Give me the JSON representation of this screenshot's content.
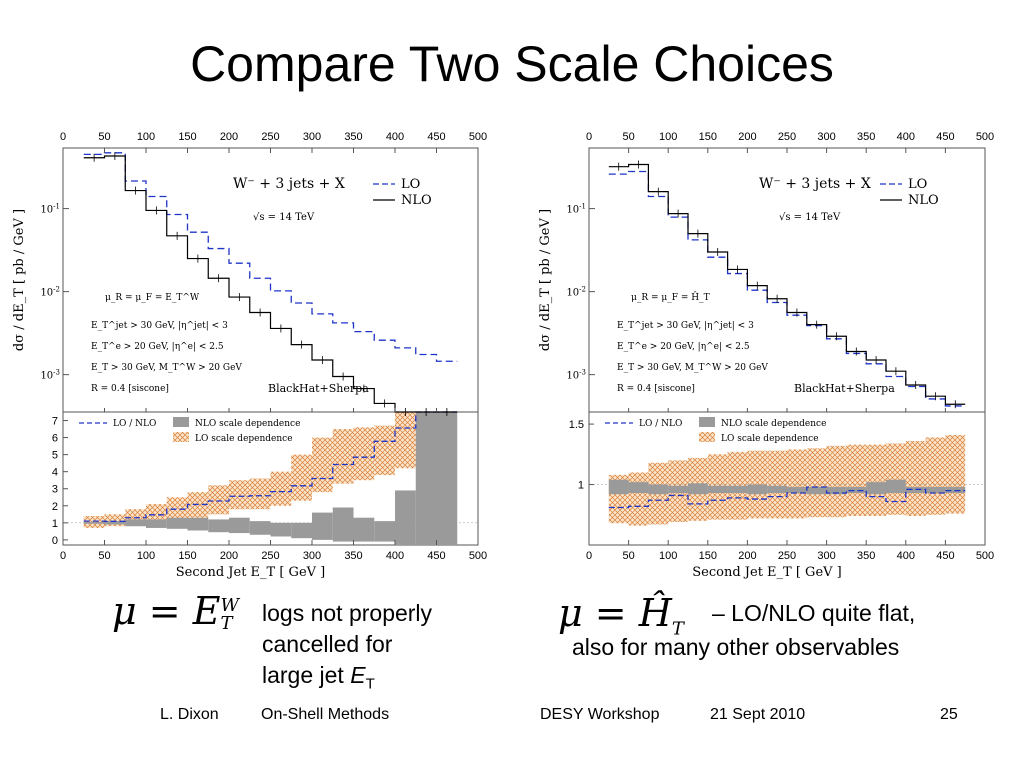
{
  "slide": {
    "title": "Compare Two Scale Choices",
    "caption_left": [
      "logs not properly",
      "cancelled for",
      "large jet "
    ],
    "caption_left_italic": "E",
    "caption_left_sub": "T",
    "caption_right_line1": "– LO/NLO quite flat,",
    "caption_right_line2": "also for many other observables",
    "formula_left": {
      "mu": "μ = ",
      "E": "E",
      "sup": "W",
      "sub": "T"
    },
    "formula_right": {
      "mu": "μ = ",
      "H": "Ĥ",
      "sub": "T"
    }
  },
  "footer": {
    "author": "L. Dixon",
    "talk": "On-Shell Methods",
    "event": "DESY Workshop",
    "date": "21 Sept 2010",
    "page": "25"
  },
  "colors": {
    "lo": "#1e34c8",
    "nlo": "#000000",
    "nlo_band": "#9a9a9a",
    "lo_band": "#e08a3c"
  },
  "chart_data": [
    {
      "type": "line",
      "step": true,
      "log_y": true,
      "title": "W⁻ + 3 jets + X",
      "energy": "√s = 14 TeV",
      "xlabel": "Second Jet E_T [ GeV ]",
      "ylabel": "dσ / dE_T [ pb / GeV ]",
      "xlim": [
        0,
        500
      ],
      "x_ticks": [
        "0",
        "50",
        "100",
        "150",
        "200",
        "250",
        "300",
        "350",
        "400",
        "450",
        "500"
      ],
      "y_ticks": [
        "10^-1",
        "10^-2",
        "10^-3"
      ],
      "legend": [
        "LO",
        "NLO"
      ],
      "legend_position": "top-right",
      "scale_label": "μ_R = μ_F = E_T^W",
      "cuts": [
        "E_T^jet > 30 GeV, |η^jet| < 3",
        "E_T^e > 20 GeV, |η^e| < 2.5",
        "E_T > 30 GeV, M_T^W > 20 GeV",
        "R = 0.4 [siscone]"
      ],
      "watermark": "BlackHat+Sherpa",
      "bin_edges": [
        25,
        50,
        75,
        100,
        125,
        150,
        175,
        200,
        225,
        250,
        275,
        300,
        325,
        350,
        375,
        400,
        425,
        450,
        475
      ],
      "series": [
        {
          "name": "LO",
          "values": [
            0.45,
            0.47,
            0.215,
            0.14,
            0.085,
            0.052,
            0.033,
            0.022,
            0.0145,
            0.0102,
            0.0073,
            0.0054,
            0.0042,
            0.0033,
            0.0026,
            0.0021,
            0.00175,
            0.00145
          ]
        },
        {
          "name": "NLO",
          "values": [
            0.41,
            0.43,
            0.165,
            0.095,
            0.047,
            0.025,
            0.0145,
            0.0086,
            0.0056,
            0.0036,
            0.0023,
            0.0015,
            0.00095,
            0.00068,
            0.00045,
            0.00032,
            0.00022,
            0.00015
          ]
        }
      ],
      "ratio_panel": {
        "ylim": [
          -0.3,
          7.5
        ],
        "y_ticks": [
          0,
          1,
          2,
          3,
          4,
          5,
          6,
          7
        ],
        "legend": [
          "LO / NLO",
          "NLO scale dependence",
          "LO scale dependence"
        ],
        "lo_over_nlo": [
          1.1,
          1.09,
          1.3,
          1.47,
          1.8,
          2.08,
          2.28,
          2.56,
          2.59,
          2.83,
          3.17,
          3.6,
          4.42,
          4.85,
          5.78,
          6.56,
          7.95,
          9.67
        ],
        "nlo_band_low": [
          0.95,
          0.9,
          0.8,
          0.7,
          0.65,
          0.55,
          0.45,
          0.4,
          0.3,
          0.2,
          0.1,
          0.0,
          -0.1,
          -0.1,
          -0.1,
          -0.3,
          -0.3,
          -0.3
        ],
        "nlo_band_high": [
          1.05,
          1.1,
          1.2,
          1.2,
          1.3,
          1.3,
          1.2,
          1.3,
          1.1,
          1.0,
          1.0,
          1.6,
          1.9,
          1.3,
          1.1,
          2.9,
          7.5,
          7.5
        ],
        "lo_band_low": [
          0.7,
          0.8,
          0.9,
          1.0,
          1.2,
          1.3,
          1.5,
          1.8,
          1.8,
          2.0,
          2.3,
          2.8,
          3.3,
          3.5,
          3.8,
          4.2,
          7.5,
          7.5
        ],
        "lo_band_high": [
          1.4,
          1.5,
          1.8,
          2.1,
          2.5,
          2.8,
          3.2,
          3.5,
          3.6,
          4.0,
          5.0,
          6.0,
          6.5,
          6.6,
          6.7,
          7.5,
          7.5,
          7.5
        ]
      }
    },
    {
      "type": "line",
      "step": true,
      "log_y": true,
      "title": "W⁻ + 3 jets + X",
      "energy": "√s = 14 TeV",
      "xlabel": "Second Jet E_T [ GeV ]",
      "ylabel": "dσ / dE_T [ pb / GeV ]",
      "xlim": [
        0,
        500
      ],
      "x_ticks": [
        "0",
        "50",
        "100",
        "150",
        "200",
        "250",
        "300",
        "350",
        "400",
        "450",
        "500"
      ],
      "y_ticks": [
        "10^-1",
        "10^-2",
        "10^-3"
      ],
      "legend": [
        "LO",
        "NLO"
      ],
      "legend_position": "top-right",
      "scale_label": "μ_R = μ_F = Ĥ_T",
      "cuts": [
        "E_T^jet > 30 GeV, |η^jet| < 3",
        "E_T^e > 20 GeV, |η^e| < 2.5",
        "E_T > 30 GeV, M_T^W > 20 GeV",
        "R = 0.4 [siscone]"
      ],
      "watermark": "BlackHat+Sherpa",
      "bin_edges": [
        25,
        50,
        75,
        100,
        125,
        150,
        175,
        200,
        225,
        250,
        275,
        300,
        325,
        350,
        375,
        400,
        425,
        450,
        475
      ],
      "series": [
        {
          "name": "LO",
          "values": [
            0.26,
            0.28,
            0.14,
            0.079,
            0.042,
            0.026,
            0.0165,
            0.0104,
            0.0074,
            0.0052,
            0.0039,
            0.0027,
            0.0018,
            0.00135,
            0.00095,
            0.00072,
            0.00051,
            0.00042
          ]
        },
        {
          "name": "NLO",
          "values": [
            0.32,
            0.34,
            0.16,
            0.087,
            0.05,
            0.03,
            0.0185,
            0.0118,
            0.0082,
            0.0056,
            0.004,
            0.0029,
            0.0019,
            0.0015,
            0.0011,
            0.00075,
            0.00055,
            0.00044
          ]
        }
      ],
      "ratio_panel": {
        "ylim": [
          0.5,
          1.6
        ],
        "y_ticks": [
          "1",
          "1.5"
        ],
        "legend": [
          "LO / NLO",
          "NLO scale dependence",
          "LO scale dependence"
        ],
        "lo_over_nlo": [
          0.81,
          0.82,
          0.87,
          0.91,
          0.84,
          0.87,
          0.89,
          0.88,
          0.9,
          0.93,
          0.98,
          0.93,
          0.95,
          0.9,
          0.86,
          0.96,
          0.93,
          0.95
        ],
        "nlo_band_low": [
          0.92,
          0.93,
          0.92,
          0.93,
          0.92,
          0.93,
          0.93,
          0.92,
          0.93,
          0.93,
          0.92,
          0.92,
          0.93,
          0.92,
          0.93,
          0.93,
          0.93,
          0.93
        ],
        "nlo_band_high": [
          1.04,
          1.02,
          1.0,
          0.99,
          1.01,
          0.99,
          0.99,
          1.0,
          0.99,
          0.98,
          0.98,
          0.98,
          0.98,
          1.02,
          1.04,
          0.98,
          0.98,
          0.98
        ],
        "lo_band_low": [
          0.68,
          0.66,
          0.67,
          0.69,
          0.7,
          0.71,
          0.71,
          0.72,
          0.72,
          0.72,
          0.73,
          0.73,
          0.74,
          0.74,
          0.75,
          0.74,
          0.75,
          0.76
        ],
        "lo_band_high": [
          1.08,
          1.1,
          1.18,
          1.2,
          1.22,
          1.25,
          1.27,
          1.28,
          1.28,
          1.29,
          1.3,
          1.32,
          1.33,
          1.33,
          1.34,
          1.36,
          1.39,
          1.41
        ]
      }
    }
  ]
}
